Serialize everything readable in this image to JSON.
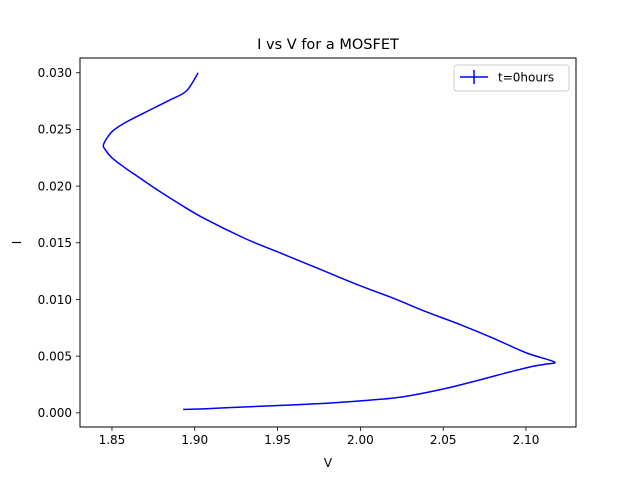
{
  "chart_data": {
    "type": "line",
    "title": "I vs V for a MOSFET",
    "xlabel": "V",
    "ylabel": "I",
    "xlim": [
      1.8307,
      2.1302
    ],
    "ylim": [
      -0.00125,
      0.0313
    ],
    "xticks": [
      "1.85",
      "1.90",
      "1.95",
      "2.00",
      "2.05",
      "2.10"
    ],
    "xtick_values": [
      1.85,
      1.9,
      1.95,
      2.0,
      2.05,
      2.1
    ],
    "yticks": [
      "0.000",
      "0.005",
      "0.010",
      "0.015",
      "0.020",
      "0.025",
      "0.030"
    ],
    "ytick_values": [
      0.0,
      0.005,
      0.01,
      0.015,
      0.02,
      0.025,
      0.03
    ],
    "grid": false,
    "legend_position": "top-right",
    "series": [
      {
        "name": "t=0hours",
        "color": "#0000ff",
        "x": [
          1.893,
          1.905,
          1.935,
          1.96,
          1.98,
          2.0,
          2.025,
          2.05,
          2.072,
          2.09,
          2.104,
          2.112,
          2.117,
          2.1,
          2.08,
          2.06,
          2.04,
          2.02,
          2.0,
          1.975,
          1.95,
          1.93,
          1.905,
          1.89,
          1.875,
          1.864,
          1.858,
          1.85,
          1.846,
          1.845,
          1.85,
          1.858,
          1.87,
          1.885,
          1.895,
          1.902
        ],
        "y": [
          0.0003,
          0.00035,
          0.00055,
          0.0007,
          0.00085,
          0.00105,
          0.0014,
          0.0021,
          0.0029,
          0.0036,
          0.0041,
          0.0043,
          0.0045,
          0.0053,
          0.0066,
          0.0078,
          0.0089,
          0.0101,
          0.0112,
          0.0127,
          0.0142,
          0.0154,
          0.0172,
          0.0185,
          0.0199,
          0.021,
          0.0216,
          0.0225,
          0.0232,
          0.0237,
          0.0248,
          0.0256,
          0.0265,
          0.0276,
          0.0284,
          0.03
        ]
      }
    ]
  }
}
